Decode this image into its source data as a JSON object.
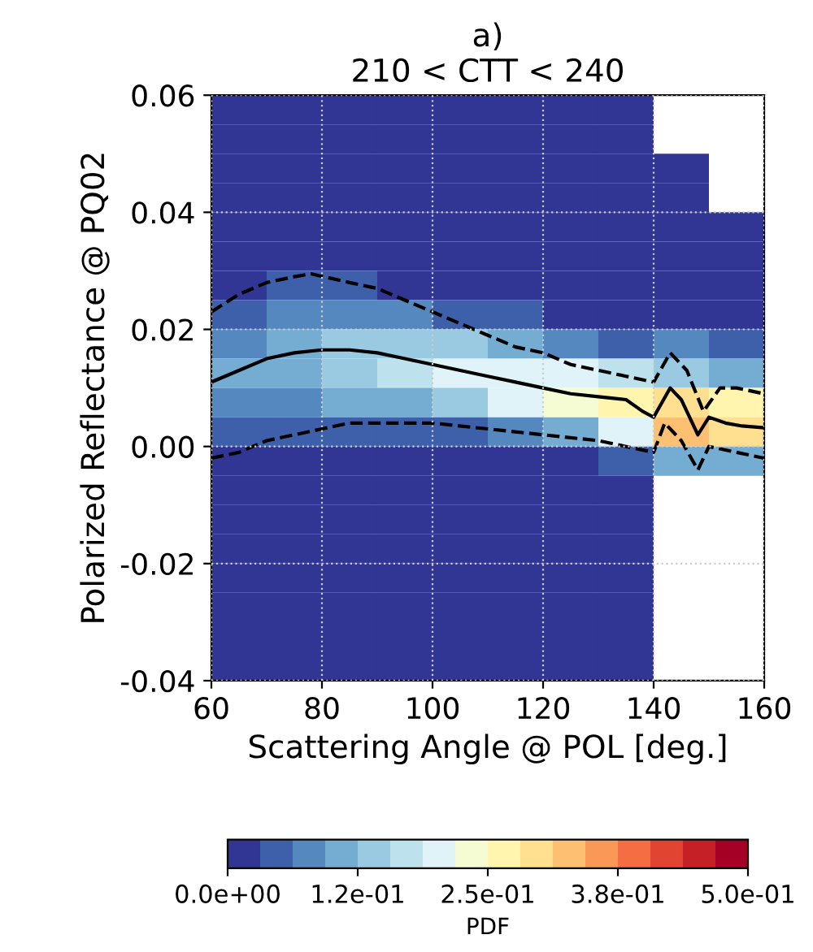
{
  "chart_data": {
    "type": "heatmap",
    "title": "a)\n210 < CTT < 240",
    "xlabel": "Scattering Angle @ POL [deg.]",
    "ylabel": "Polarized Reflectance @ PQ02",
    "clabel": "PDF",
    "x": [
      65,
      75,
      85,
      95,
      105,
      115,
      125,
      135,
      145,
      155
    ],
    "y": [
      0.0575,
      0.0525,
      0.0475,
      0.0425,
      0.0375,
      0.0325,
      0.0275,
      0.0225,
      0.0175,
      0.0125,
      0.0075,
      0.0025,
      -0.0025,
      -0.0075,
      -0.0125,
      -0.0175,
      -0.0225,
      -0.0275,
      -0.0325,
      -0.0375
    ],
    "xlim": [
      60,
      160
    ],
    "xticks": [
      60,
      80,
      100,
      120,
      140,
      160
    ],
    "ylim": [
      -0.04,
      0.06
    ],
    "yticks": [
      {
        "value": -0.04,
        "label": "-0.04"
      },
      {
        "value": -0.02,
        "label": "-0.02"
      },
      {
        "value": 0,
        "label": "0.00"
      },
      {
        "value": 0.02,
        "label": "0.02"
      },
      {
        "value": 0.04,
        "label": "0.04"
      },
      {
        "value": 0.06,
        "label": "0.06"
      }
    ],
    "clim": [
      0,
      0.5
    ],
    "cticks": [
      {
        "value": 0,
        "label": "0.0e+00"
      },
      {
        "value": 0.125,
        "label": "1.2e-01"
      },
      {
        "value": 0.25,
        "label": "2.5e-01"
      },
      {
        "value": 0.375,
        "label": "3.8e-01"
      },
      {
        "value": 0.5,
        "label": "5.0e-01"
      }
    ],
    "grid": true,
    "cells": [
      [
        0.01,
        0.01,
        0.01,
        0.01,
        0.01,
        0.01,
        0.01,
        0.01,
        null,
        null
      ],
      [
        0.01,
        0.01,
        0.01,
        0.01,
        0.01,
        0.01,
        0.01,
        0.01,
        null,
        null
      ],
      [
        0.01,
        0.01,
        0.01,
        0.01,
        0.01,
        0.01,
        0.01,
        0.01,
        0.01,
        null
      ],
      [
        0.01,
        0.01,
        0.01,
        0.01,
        0.01,
        0.01,
        0.01,
        0.01,
        0.01,
        null
      ],
      [
        0.01,
        0.01,
        0.01,
        0.01,
        0.01,
        0.01,
        0.01,
        0.01,
        0.01,
        0.01
      ],
      [
        0.01,
        0.02,
        0.02,
        0.01,
        0.01,
        0.01,
        0.01,
        0.01,
        0.01,
        0.01
      ],
      [
        0.02,
        0.04,
        0.04,
        0.03,
        0.02,
        0.02,
        0.01,
        0.01,
        0.01,
        0.01
      ],
      [
        0.05,
        0.08,
        0.09,
        0.08,
        0.06,
        0.04,
        0.03,
        0.02,
        0.03,
        0.01
      ],
      [
        0.08,
        0.12,
        0.14,
        0.15,
        0.14,
        0.11,
        0.08,
        0.05,
        0.08,
        0.04
      ],
      [
        0.1,
        0.12,
        0.14,
        0.17,
        0.2,
        0.21,
        0.2,
        0.16,
        0.15,
        0.12
      ],
      [
        0.08,
        0.09,
        0.1,
        0.11,
        0.15,
        0.19,
        0.24,
        0.28,
        0.3,
        0.25
      ],
      [
        0.05,
        0.05,
        0.05,
        0.05,
        0.06,
        0.08,
        0.11,
        0.2,
        0.33,
        0.31
      ],
      [
        0.02,
        0.02,
        0.02,
        0.02,
        0.02,
        0.02,
        0.03,
        0.05,
        0.1,
        0.12
      ],
      [
        0.01,
        0.01,
        0.01,
        0.01,
        0.01,
        0.01,
        0.01,
        0.02,
        null,
        null
      ],
      [
        0.01,
        0.01,
        0.01,
        0.01,
        0.01,
        0.01,
        0.01,
        0.01,
        null,
        null
      ],
      [
        0.01,
        0.01,
        0.01,
        0.01,
        0.01,
        0.01,
        0.01,
        0.01,
        null,
        null
      ],
      [
        0.01,
        0.01,
        0.01,
        0.01,
        0.01,
        0.01,
        0.01,
        0.01,
        null,
        null
      ],
      [
        0.01,
        0.01,
        0.01,
        0.01,
        0.01,
        0.01,
        0.01,
        0.01,
        null,
        null
      ],
      [
        0.01,
        0.01,
        0.01,
        0.01,
        0.01,
        0.01,
        0.01,
        0.01,
        null,
        null
      ],
      [
        0.01,
        0.01,
        0.01,
        0.01,
        0.01,
        0.01,
        0.01,
        0.01,
        null,
        null
      ]
    ],
    "series": [
      {
        "type": "line",
        "color": "#000000",
        "line_style": "solid",
        "x": [
          60,
          65,
          70,
          75,
          80,
          85,
          90,
          95,
          100,
          105,
          110,
          115,
          120,
          125,
          130,
          135,
          138,
          140,
          143,
          145,
          148,
          150,
          153,
          156,
          160
        ],
        "values": [
          0.011,
          0.013,
          0.015,
          0.016,
          0.0165,
          0.0165,
          0.016,
          0.015,
          0.014,
          0.013,
          0.012,
          0.011,
          0.01,
          0.009,
          0.0085,
          0.008,
          0.006,
          0.005,
          0.01,
          0.008,
          0.002,
          0.005,
          0.004,
          0.0035,
          0.0032
        ]
      },
      {
        "type": "line",
        "color": "#000000",
        "line_style": "dashed",
        "x": [
          60,
          65,
          70,
          75,
          78,
          85,
          90,
          95,
          100,
          105,
          110,
          115,
          120,
          125,
          130,
          135,
          140,
          143,
          146,
          149,
          152,
          155,
          160
        ],
        "values": [
          0.023,
          0.026,
          0.028,
          0.029,
          0.0295,
          0.028,
          0.027,
          0.025,
          0.023,
          0.021,
          0.019,
          0.017,
          0.016,
          0.014,
          0.013,
          0.012,
          0.011,
          0.016,
          0.013,
          0.006,
          0.01,
          0.01,
          0.009
        ]
      },
      {
        "type": "line",
        "color": "#000000",
        "line_style": "dashed",
        "x": [
          60,
          65,
          70,
          75,
          80,
          85,
          90,
          100,
          110,
          120,
          130,
          135,
          140,
          142,
          145,
          148,
          150,
          155,
          160
        ],
        "values": [
          -0.002,
          -0.001,
          0.001,
          0.002,
          0.003,
          0.004,
          0.004,
          0.004,
          0.003,
          0.002,
          0.001,
          0.0,
          -0.001,
          0.004,
          0.001,
          -0.004,
          0.0,
          -0.001,
          -0.002
        ]
      }
    ]
  }
}
